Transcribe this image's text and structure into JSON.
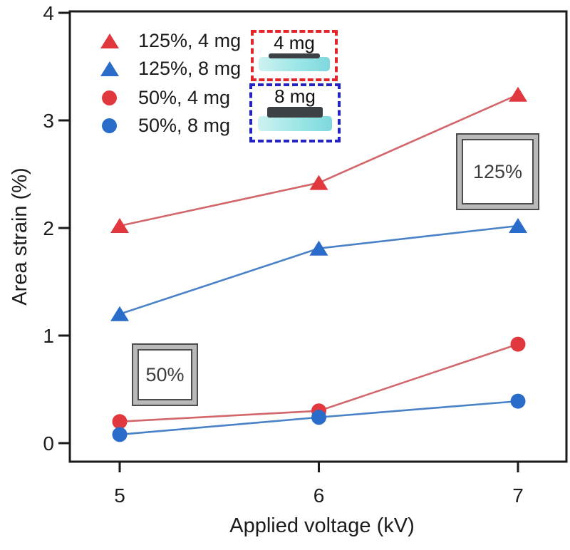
{
  "figure": {
    "background": "#ffffff",
    "text_color": "#1c1c1c",
    "axis_color": "#1a1a1a"
  },
  "chart_data": {
    "type": "line",
    "x": [
      5,
      6,
      7
    ],
    "series": [
      {
        "name": "125%, 4 mg",
        "marker": "triangle",
        "marker_color": "#e0383e",
        "line_color": "#d2666b",
        "values": [
          2.02,
          2.42,
          3.24
        ]
      },
      {
        "name": "125%, 8 mg",
        "marker": "triangle",
        "marker_color": "#2a6cc9",
        "line_color": "#4a82c8",
        "values": [
          1.2,
          1.81,
          2.02
        ]
      },
      {
        "name": "50%, 4 mg",
        "marker": "circle",
        "marker_color": "#e0383e",
        "line_color": "#d2666b",
        "values": [
          0.2,
          0.3,
          0.92
        ]
      },
      {
        "name": "50%, 8 mg",
        "marker": "circle",
        "marker_color": "#2a6cc9",
        "line_color": "#4a82c8",
        "values": [
          0.08,
          0.24,
          0.39
        ]
      }
    ],
    "title": "",
    "xlabel": "Applied voltage (kV)",
    "ylabel": "Area strain (%)",
    "xticks": [
      5,
      6,
      7
    ],
    "yticks": [
      0,
      1,
      2,
      3,
      4
    ],
    "xlim": [
      4.75,
      7.24
    ],
    "ylim": [
      -0.17,
      4.0
    ],
    "grid": false,
    "legend_position": "top-left"
  },
  "insets": {
    "sample_4mg": {
      "label": "4 mg",
      "border_color": "#e3252b"
    },
    "sample_8mg": {
      "label": "8 mg",
      "border_color": "#2424c0"
    }
  },
  "annotations": {
    "label_125": "125%",
    "label_50": "50%"
  }
}
